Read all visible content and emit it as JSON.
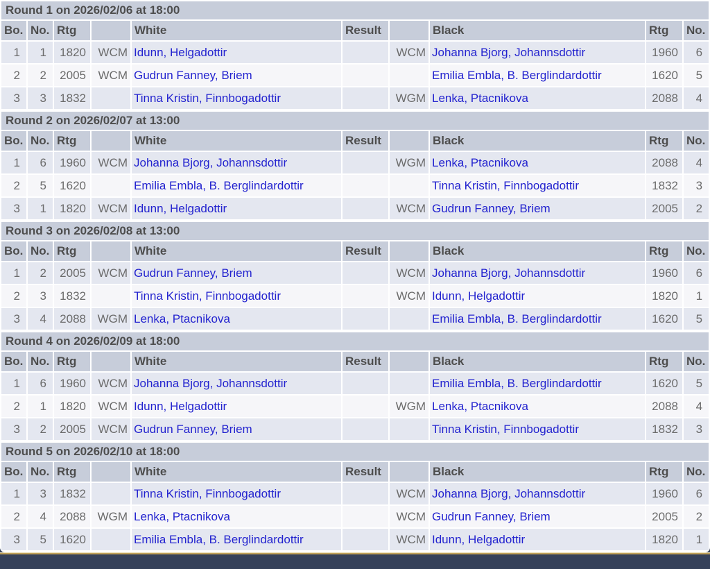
{
  "columns": [
    "Bo.",
    "No.",
    "Rtg",
    "",
    "White",
    "Result",
    "",
    "Black",
    "Rtg",
    "No."
  ],
  "colors": {
    "header_band": "#c7cdda",
    "row_odd": "#e4e7f0",
    "row_even": "#f6f6f9",
    "player_link": "#2323cf",
    "muted_text": "#6b6b6b",
    "header_text": "#4d4d4d",
    "footer_navy": "#35415a",
    "footer_gold": "#bf9f56"
  },
  "rounds": [
    {
      "title": "Round 1 on 2026/02/06 at 18:00",
      "games": [
        {
          "board": "1",
          "white_no": "1",
          "white_rtg": "1820",
          "white_title": "WCM",
          "white": "Idunn, Helgadottir",
          "result": "",
          "black_title": "WCM",
          "black": "Johanna Bjorg, Johannsdottir",
          "black_rtg": "1960",
          "black_no": "6"
        },
        {
          "board": "2",
          "white_no": "2",
          "white_rtg": "2005",
          "white_title": "WCM",
          "white": "Gudrun Fanney, Briem",
          "result": "",
          "black_title": "",
          "black": "Emilia Embla, B. Berglindardottir",
          "black_rtg": "1620",
          "black_no": "5"
        },
        {
          "board": "3",
          "white_no": "3",
          "white_rtg": "1832",
          "white_title": "",
          "white": "Tinna Kristin, Finnbogadottir",
          "result": "",
          "black_title": "WGM",
          "black": "Lenka, Ptacnikova",
          "black_rtg": "2088",
          "black_no": "4"
        }
      ]
    },
    {
      "title": "Round 2 on 2026/02/07 at 13:00",
      "games": [
        {
          "board": "1",
          "white_no": "6",
          "white_rtg": "1960",
          "white_title": "WCM",
          "white": "Johanna Bjorg, Johannsdottir",
          "result": "",
          "black_title": "WGM",
          "black": "Lenka, Ptacnikova",
          "black_rtg": "2088",
          "black_no": "4"
        },
        {
          "board": "2",
          "white_no": "5",
          "white_rtg": "1620",
          "white_title": "",
          "white": "Emilia Embla, B. Berglindardottir",
          "result": "",
          "black_title": "",
          "black": "Tinna Kristin, Finnbogadottir",
          "black_rtg": "1832",
          "black_no": "3"
        },
        {
          "board": "3",
          "white_no": "1",
          "white_rtg": "1820",
          "white_title": "WCM",
          "white": "Idunn, Helgadottir",
          "result": "",
          "black_title": "WCM",
          "black": "Gudrun Fanney, Briem",
          "black_rtg": "2005",
          "black_no": "2"
        }
      ]
    },
    {
      "title": "Round 3 on 2026/02/08 at 13:00",
      "games": [
        {
          "board": "1",
          "white_no": "2",
          "white_rtg": "2005",
          "white_title": "WCM",
          "white": "Gudrun Fanney, Briem",
          "result": "",
          "black_title": "WCM",
          "black": "Johanna Bjorg, Johannsdottir",
          "black_rtg": "1960",
          "black_no": "6"
        },
        {
          "board": "2",
          "white_no": "3",
          "white_rtg": "1832",
          "white_title": "",
          "white": "Tinna Kristin, Finnbogadottir",
          "result": "",
          "black_title": "WCM",
          "black": "Idunn, Helgadottir",
          "black_rtg": "1820",
          "black_no": "1"
        },
        {
          "board": "3",
          "white_no": "4",
          "white_rtg": "2088",
          "white_title": "WGM",
          "white": "Lenka, Ptacnikova",
          "result": "",
          "black_title": "",
          "black": "Emilia Embla, B. Berglindardottir",
          "black_rtg": "1620",
          "black_no": "5"
        }
      ]
    },
    {
      "title": "Round 4 on 2026/02/09 at 18:00",
      "games": [
        {
          "board": "1",
          "white_no": "6",
          "white_rtg": "1960",
          "white_title": "WCM",
          "white": "Johanna Bjorg, Johannsdottir",
          "result": "",
          "black_title": "",
          "black": "Emilia Embla, B. Berglindardottir",
          "black_rtg": "1620",
          "black_no": "5"
        },
        {
          "board": "2",
          "white_no": "1",
          "white_rtg": "1820",
          "white_title": "WCM",
          "white": "Idunn, Helgadottir",
          "result": "",
          "black_title": "WGM",
          "black": "Lenka, Ptacnikova",
          "black_rtg": "2088",
          "black_no": "4"
        },
        {
          "board": "3",
          "white_no": "2",
          "white_rtg": "2005",
          "white_title": "WCM",
          "white": "Gudrun Fanney, Briem",
          "result": "",
          "black_title": "",
          "black": "Tinna Kristin, Finnbogadottir",
          "black_rtg": "1832",
          "black_no": "3"
        }
      ]
    },
    {
      "title": "Round 5 on 2026/02/10 at 18:00",
      "games": [
        {
          "board": "1",
          "white_no": "3",
          "white_rtg": "1832",
          "white_title": "",
          "white": "Tinna Kristin, Finnbogadottir",
          "result": "",
          "black_title": "WCM",
          "black": "Johanna Bjorg, Johannsdottir",
          "black_rtg": "1960",
          "black_no": "6"
        },
        {
          "board": "2",
          "white_no": "4",
          "white_rtg": "2088",
          "white_title": "WGM",
          "white": "Lenka, Ptacnikova",
          "result": "",
          "black_title": "WCM",
          "black": "Gudrun Fanney, Briem",
          "black_rtg": "2005",
          "black_no": "2"
        },
        {
          "board": "3",
          "white_no": "5",
          "white_rtg": "1620",
          "white_title": "",
          "white": "Emilia Embla, B. Berglindardottir",
          "result": "",
          "black_title": "WCM",
          "black": "Idunn, Helgadottir",
          "black_rtg": "1820",
          "black_no": "1"
        }
      ]
    }
  ]
}
